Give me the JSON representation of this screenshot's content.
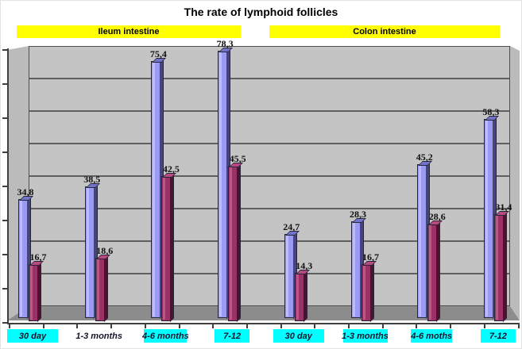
{
  "title": "The rate of lymphoid follicles",
  "section_headers": [
    {
      "label": "Ileum intestine"
    },
    {
      "label": "Colon intestine"
    }
  ],
  "colors": {
    "banner_bg": "#FFFF00",
    "highlight_bg": "#00FFFF",
    "wall": "#C4C4C4",
    "side_wall": "#BBBBBB",
    "floor": "#8C8C8C",
    "gridline": "#5F5F5F",
    "axis": "#3F3F3F",
    "bar_outline": "#26263A",
    "blue_front": "#9A9AF5",
    "blue_side": "#45457C",
    "blue_top": "#7272C8",
    "blue_highlight": "#C6C6FF",
    "maroon_front": "#9C3168",
    "maroon_side": "#4C1331",
    "maroon_top": "#B44A7E",
    "maroon_highlight": "#C2678F"
  },
  "chart_data": {
    "type": "bar",
    "style": "3d-clustered-column",
    "title": "The rate of lymphoid follicles",
    "sections": [
      "Ileum intestine",
      "Colon intestine"
    ],
    "categories": [
      {
        "label": "30 day",
        "section": "Ileum intestine",
        "highlighted": true
      },
      {
        "label": "1-3 months",
        "section": "Ileum intestine",
        "highlighted": false
      },
      {
        "label": "4-6 months",
        "section": "Ileum intestine",
        "highlighted": true
      },
      {
        "label": "7-12",
        "section": "Ileum intestine",
        "highlighted": true
      },
      {
        "label": "30 day",
        "section": "Colon intestine",
        "highlighted": true
      },
      {
        "label": "1-3  months",
        "section": "Colon intestine",
        "highlighted": true
      },
      {
        "label": "4-6 moths",
        "section": "Colon intestine",
        "highlighted": true
      },
      {
        "label": "7-12",
        "section": "Colon intestine",
        "highlighted": true
      }
    ],
    "series": [
      {
        "name": "series-1-blue",
        "color": "#9999FF",
        "values": [
          34.8,
          38.5,
          75.4,
          78.3,
          24.7,
          28.3,
          45.2,
          58.3
        ],
        "labels": [
          "34,8",
          "38,5",
          "75,4",
          "78,3",
          "24,7",
          "28,3",
          "45,2",
          "58,3"
        ]
      },
      {
        "name": "series-2-maroon",
        "color": "#993366",
        "values": [
          16.7,
          18.6,
          42.5,
          45.5,
          14.3,
          16.7,
          28.6,
          31.4
        ],
        "labels": [
          "16,7",
          "18,6",
          "42,5",
          "45,5",
          "14,3",
          "16,7",
          "28,6",
          "31,4"
        ]
      }
    ],
    "ylim": [
      0,
      80
    ],
    "gridline_step": 10,
    "y_tick_labels_visible": false,
    "legend": "none",
    "grid": true
  }
}
